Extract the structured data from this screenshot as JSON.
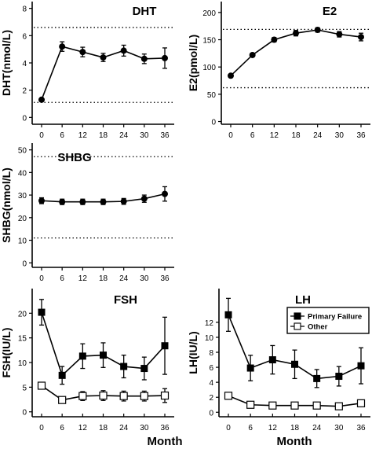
{
  "figure": {
    "xlabel_left": "Month",
    "xlabel_right": "Month"
  },
  "chart_data": [
    {
      "id": "dht",
      "type": "line",
      "title": "DHT",
      "ylabel": "DHT(nmol/L)",
      "xlabel": "",
      "x": [
        0,
        6,
        12,
        18,
        24,
        30,
        36
      ],
      "ylim": [
        -0.5,
        8.5
      ],
      "yticks": [
        0,
        2,
        4,
        6,
        8
      ],
      "reference_lines": [
        6.6,
        1.1
      ],
      "series": [
        {
          "name": "",
          "marker": "filled-circle",
          "values": [
            1.3,
            5.2,
            4.8,
            4.4,
            4.9,
            4.3,
            4.35
          ],
          "errors": [
            0.1,
            0.35,
            0.35,
            0.3,
            0.4,
            0.35,
            0.75
          ]
        }
      ]
    },
    {
      "id": "e2",
      "type": "line",
      "title": "E2",
      "ylabel": "E2(pmol/L)",
      "xlabel": "",
      "x": [
        0,
        6,
        12,
        18,
        24,
        30,
        36
      ],
      "ylim": [
        -5,
        220
      ],
      "yticks": [
        0,
        50,
        100,
        150,
        200
      ],
      "reference_lines": [
        169,
        62
      ],
      "series": [
        {
          "name": "",
          "marker": "filled-circle",
          "values": [
            84,
            122,
            150,
            162,
            168,
            160,
            155
          ],
          "errors": [
            1,
            3,
            4,
            5,
            4,
            5,
            7
          ]
        }
      ]
    },
    {
      "id": "shbg",
      "type": "line",
      "title": "SHBG",
      "ylabel": "SHBG(nmol/L)",
      "xlabel": "",
      "x": [
        0,
        6,
        12,
        18,
        24,
        30,
        36
      ],
      "ylim": [
        -2,
        53
      ],
      "yticks": [
        0,
        10,
        20,
        30,
        40,
        50
      ],
      "reference_lines": [
        47,
        11
      ],
      "series": [
        {
          "name": "",
          "marker": "filled-circle",
          "values": [
            27.5,
            27,
            27,
            27,
            27.2,
            28.4,
            30.5
          ],
          "errors": [
            1.3,
            1.2,
            1.2,
            1.2,
            1.3,
            1.6,
            3.2
          ]
        }
      ]
    },
    {
      "id": "fsh",
      "type": "line",
      "title": "FSH",
      "ylabel": "FSH(IU/L)",
      "xlabel": "Month",
      "x": [
        0,
        6,
        12,
        18,
        24,
        30,
        36
      ],
      "ylim": [
        -1,
        25
      ],
      "yticks": [
        0,
        5,
        10,
        15,
        20
      ],
      "reference_lines": [],
      "series": [
        {
          "name": "",
          "marker": "filled-square",
          "values": [
            20.2,
            7.4,
            11.3,
            11.5,
            9.2,
            8.8,
            13.4
          ],
          "errors": [
            2.6,
            1.8,
            2.5,
            2.5,
            2.3,
            2.3,
            5.8
          ]
        },
        {
          "name": "",
          "marker": "open-square",
          "values": [
            5.3,
            2.4,
            3.2,
            3.3,
            3.2,
            3.2,
            3.3
          ],
          "errors": [
            0.6,
            0.5,
            0.9,
            1.0,
            1.0,
            1.0,
            1.4
          ]
        }
      ]
    },
    {
      "id": "lh",
      "type": "line",
      "title": "LH",
      "ylabel": "LH(IU/L)",
      "xlabel": "Month",
      "x": [
        0,
        6,
        12,
        18,
        24,
        30,
        36
      ],
      "ylim": [
        -0.6,
        16.5
      ],
      "yticks": [
        0,
        2,
        4,
        6,
        8,
        10,
        12
      ],
      "reference_lines": [],
      "legend": {
        "position": "top-right",
        "entries": [
          "Primary Failure",
          "Other"
        ]
      },
      "series": [
        {
          "name": "Primary Failure",
          "marker": "filled-square",
          "values": [
            13.0,
            5.9,
            7.0,
            6.4,
            4.5,
            4.8,
            6.2
          ],
          "errors": [
            2.2,
            1.7,
            1.9,
            1.9,
            1.2,
            1.3,
            2.4
          ]
        },
        {
          "name": "Other",
          "marker": "open-square",
          "values": [
            2.2,
            1.0,
            0.9,
            0.9,
            0.9,
            0.8,
            1.2
          ],
          "errors": [
            0.15,
            0.15,
            0.15,
            0.15,
            0.15,
            0.15,
            0.4
          ]
        }
      ]
    }
  ]
}
